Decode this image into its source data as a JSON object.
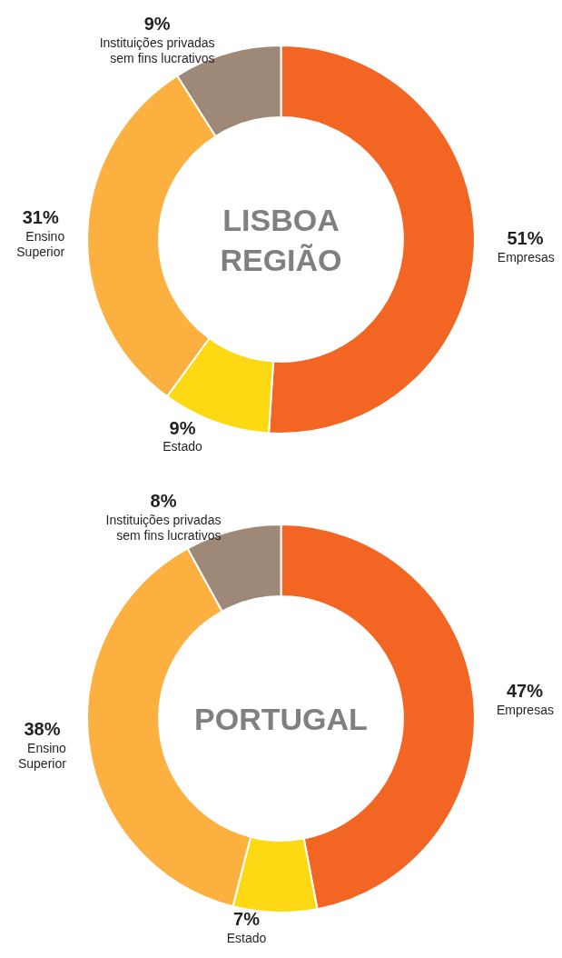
{
  "chart_data": [
    {
      "type": "donut",
      "title": "LISBOA\nREGIÃO",
      "categories": [
        "Empresas",
        "Estado",
        "Ensino Superior",
        "Instituições privadas sem fins lucrativos"
      ],
      "values": [
        51,
        9,
        31,
        9
      ],
      "value_labels": [
        "51%",
        "9%",
        "31%",
        "9%"
      ],
      "colors": [
        "#f26522",
        "#fdd914",
        "#fbb040",
        "#9e8878"
      ],
      "legend": false
    },
    {
      "type": "donut",
      "title": "PORTUGAL",
      "categories": [
        "Empresas",
        "Estado",
        "Ensino Superior",
        "Instituições privadas sem fins lucrativos"
      ],
      "values": [
        47,
        7,
        38,
        8
      ],
      "value_labels": [
        "47%",
        "7%",
        "38%",
        "8%"
      ],
      "colors": [
        "#f26522",
        "#fdd914",
        "#fbb040",
        "#9e8878"
      ],
      "legend": false
    }
  ]
}
